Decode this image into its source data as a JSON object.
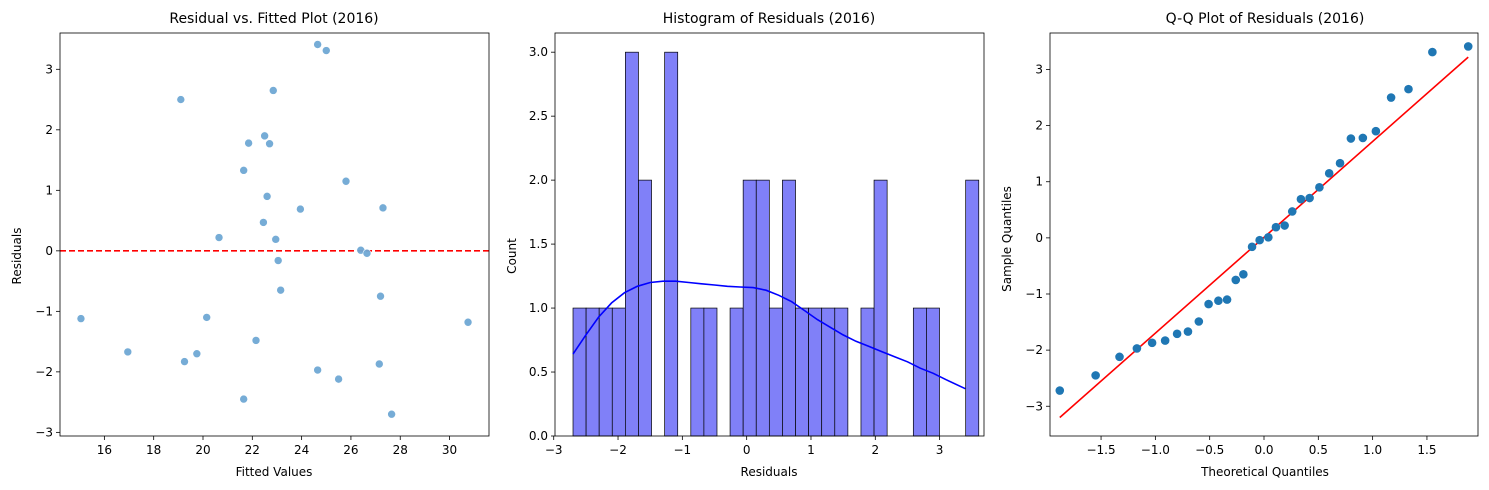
{
  "chart_data": [
    {
      "type": "scatter",
      "title": "Residual vs. Fitted Plot (2016)",
      "xlabel": "Fitted Values",
      "ylabel": "Residuals",
      "xlim": [
        14.2,
        31.6
      ],
      "ylim": [
        -3.06,
        3.6
      ],
      "xticks": [
        16,
        18,
        20,
        22,
        24,
        26,
        28,
        30
      ],
      "yticks": [
        -3,
        -2,
        -1,
        0,
        1,
        2,
        3
      ],
      "point_color": "#6fa8d4",
      "reference_line": {
        "y": 0,
        "color": "#ff0000",
        "style": "dashed"
      },
      "points": [
        {
          "x": 15.05,
          "y": -1.12
        },
        {
          "x": 16.95,
          "y": -1.67
        },
        {
          "x": 19.1,
          "y": 2.5
        },
        {
          "x": 19.25,
          "y": -1.83
        },
        {
          "x": 19.75,
          "y": -1.7
        },
        {
          "x": 20.15,
          "y": -1.1
        },
        {
          "x": 20.65,
          "y": 0.22
        },
        {
          "x": 21.65,
          "y": 1.33
        },
        {
          "x": 21.65,
          "y": -2.45
        },
        {
          "x": 21.85,
          "y": 1.78
        },
        {
          "x": 22.15,
          "y": -1.48
        },
        {
          "x": 22.45,
          "y": 0.47
        },
        {
          "x": 22.5,
          "y": 1.9
        },
        {
          "x": 22.6,
          "y": 0.9
        },
        {
          "x": 22.7,
          "y": 1.77
        },
        {
          "x": 22.85,
          "y": 2.65
        },
        {
          "x": 22.95,
          "y": 0.19
        },
        {
          "x": 23.05,
          "y": -0.16
        },
        {
          "x": 23.15,
          "y": -0.65
        },
        {
          "x": 23.95,
          "y": 0.69
        },
        {
          "x": 24.65,
          "y": 3.41
        },
        {
          "x": 24.65,
          "y": -1.97
        },
        {
          "x": 25.0,
          "y": 3.31
        },
        {
          "x": 25.5,
          "y": -2.12
        },
        {
          "x": 25.8,
          "y": 1.15
        },
        {
          "x": 26.4,
          "y": 0.01
        },
        {
          "x": 26.65,
          "y": -0.04
        },
        {
          "x": 27.15,
          "y": -1.87
        },
        {
          "x": 27.2,
          "y": -0.75
        },
        {
          "x": 27.3,
          "y": 0.71
        },
        {
          "x": 27.65,
          "y": -2.7
        },
        {
          "x": 30.75,
          "y": -1.18
        }
      ]
    },
    {
      "type": "bar",
      "title": "Histogram of Residuals (2016)",
      "xlabel": "Residuals",
      "ylabel": "Count",
      "xlim": [
        -2.98,
        3.69
      ],
      "ylim": [
        0,
        3.15
      ],
      "xticks": [
        -3,
        -2,
        -1,
        0,
        1,
        2,
        3
      ],
      "yticks": [
        0.0,
        0.5,
        1.0,
        1.5,
        2.0,
        2.5,
        3.0
      ],
      "bar_color": "#8080f8",
      "kde_color": "#0000ff",
      "bins": {
        "start": -2.7,
        "width": 0.2035
      },
      "values": [
        1,
        1,
        1,
        1,
        3,
        2,
        0,
        3,
        0,
        1,
        1,
        0,
        1,
        2,
        2,
        1,
        2,
        1,
        1,
        1,
        1,
        0,
        1,
        2,
        0,
        0,
        1,
        1,
        0,
        0,
        2
      ],
      "kde": [
        {
          "x": -2.7,
          "y": 0.64
        },
        {
          "x": -2.5,
          "y": 0.79
        },
        {
          "x": -2.3,
          "y": 0.93
        },
        {
          "x": -2.1,
          "y": 1.04
        },
        {
          "x": -1.9,
          "y": 1.12
        },
        {
          "x": -1.7,
          "y": 1.17
        },
        {
          "x": -1.5,
          "y": 1.2
        },
        {
          "x": -1.3,
          "y": 1.21
        },
        {
          "x": -1.1,
          "y": 1.21
        },
        {
          "x": -0.9,
          "y": 1.2
        },
        {
          "x": -0.7,
          "y": 1.19
        },
        {
          "x": -0.5,
          "y": 1.18
        },
        {
          "x": -0.3,
          "y": 1.17
        },
        {
          "x": -0.1,
          "y": 1.165
        },
        {
          "x": 0.1,
          "y": 1.16
        },
        {
          "x": 0.3,
          "y": 1.14
        },
        {
          "x": 0.5,
          "y": 1.1
        },
        {
          "x": 0.7,
          "y": 1.05
        },
        {
          "x": 0.9,
          "y": 0.98
        },
        {
          "x": 1.1,
          "y": 0.91
        },
        {
          "x": 1.3,
          "y": 0.85
        },
        {
          "x": 1.5,
          "y": 0.79
        },
        {
          "x": 1.7,
          "y": 0.74
        },
        {
          "x": 1.9,
          "y": 0.7
        },
        {
          "x": 2.1,
          "y": 0.66
        },
        {
          "x": 2.3,
          "y": 0.62
        },
        {
          "x": 2.5,
          "y": 0.58
        },
        {
          "x": 2.7,
          "y": 0.53
        },
        {
          "x": 2.9,
          "y": 0.49
        },
        {
          "x": 3.1,
          "y": 0.44
        },
        {
          "x": 3.4,
          "y": 0.37
        }
      ]
    },
    {
      "type": "scatter",
      "title": "Q-Q Plot of Residuals (2016)",
      "xlabel": "Theoretical Quantiles",
      "ylabel": "Sample Quantiles",
      "xlim": [
        -1.97,
        1.97
      ],
      "ylim": [
        -3.53,
        3.65
      ],
      "xticks": [
        -1.5,
        -1.0,
        -0.5,
        0.0,
        0.5,
        1.0,
        1.5
      ],
      "yticks": [
        -3,
        -2,
        -1,
        0,
        1,
        2,
        3
      ],
      "point_color": "#1f77b4",
      "reference_line": {
        "x": [
          -1.88,
          1.88
        ],
        "y": [
          -3.2,
          3.22
        ],
        "color": "#ff0000",
        "style": "solid"
      },
      "points": [
        {
          "x": -1.88,
          "y": -2.72
        },
        {
          "x": -1.55,
          "y": -2.45
        },
        {
          "x": -1.33,
          "y": -2.12
        },
        {
          "x": -1.17,
          "y": -1.97
        },
        {
          "x": -1.03,
          "y": -1.87
        },
        {
          "x": -0.91,
          "y": -1.83
        },
        {
          "x": -0.8,
          "y": -1.71
        },
        {
          "x": -0.7,
          "y": -1.67
        },
        {
          "x": -0.6,
          "y": -1.49
        },
        {
          "x": -0.51,
          "y": -1.18
        },
        {
          "x": -0.42,
          "y": -1.12
        },
        {
          "x": -0.34,
          "y": -1.1
        },
        {
          "x": -0.26,
          "y": -0.75
        },
        {
          "x": -0.19,
          "y": -0.65
        },
        {
          "x": -0.11,
          "y": -0.16
        },
        {
          "x": -0.04,
          "y": -0.04
        },
        {
          "x": 0.04,
          "y": 0.01
        },
        {
          "x": 0.11,
          "y": 0.19
        },
        {
          "x": 0.19,
          "y": 0.22
        },
        {
          "x": 0.26,
          "y": 0.47
        },
        {
          "x": 0.34,
          "y": 0.69
        },
        {
          "x": 0.42,
          "y": 0.71
        },
        {
          "x": 0.51,
          "y": 0.9
        },
        {
          "x": 0.6,
          "y": 1.15
        },
        {
          "x": 0.7,
          "y": 1.33
        },
        {
          "x": 0.8,
          "y": 1.77
        },
        {
          "x": 0.91,
          "y": 1.78
        },
        {
          "x": 1.03,
          "y": 1.9
        },
        {
          "x": 1.17,
          "y": 2.5
        },
        {
          "x": 1.33,
          "y": 2.65
        },
        {
          "x": 1.55,
          "y": 3.31
        },
        {
          "x": 1.88,
          "y": 3.41
        }
      ]
    }
  ]
}
